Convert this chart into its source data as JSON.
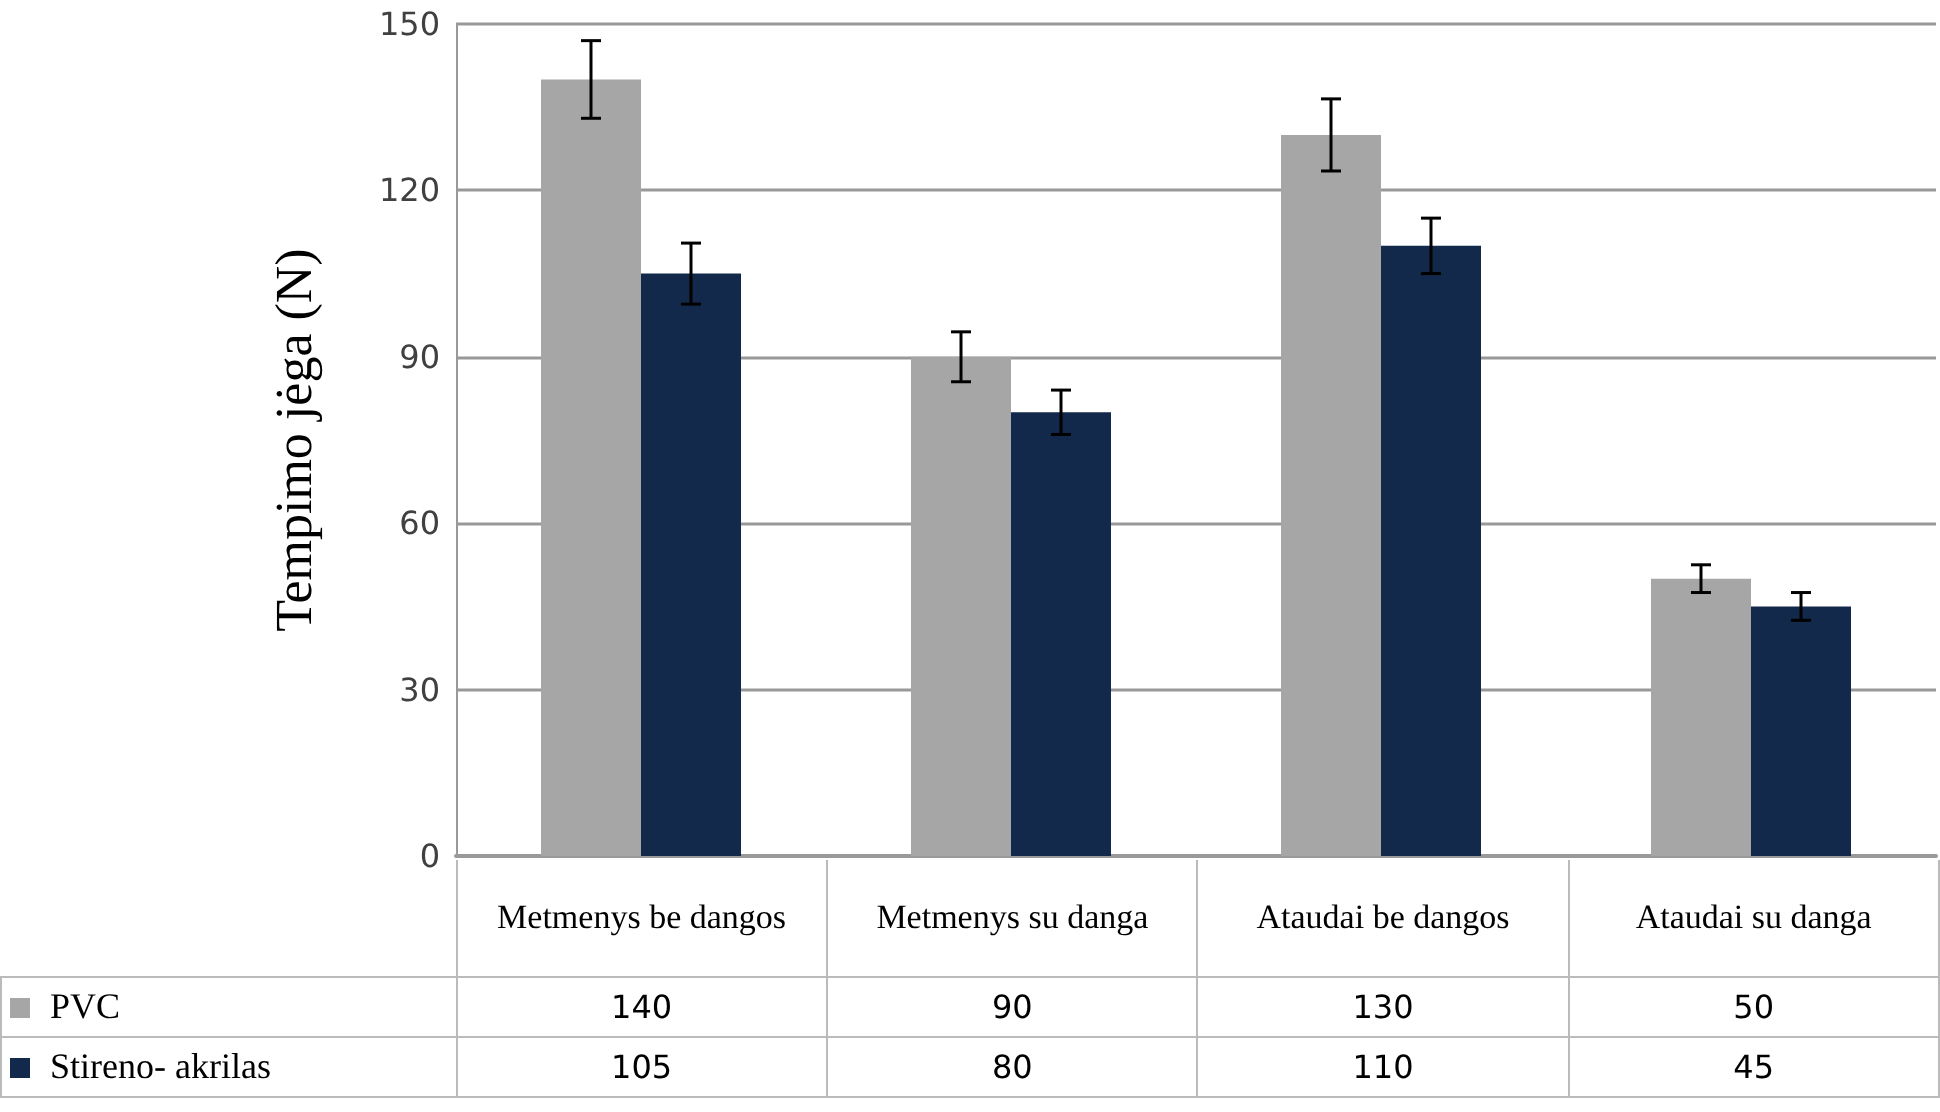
{
  "chart_data": {
    "type": "bar",
    "ylabel": "Tempimo jėga (N)",
    "categories": [
      "Metmenys be dangos",
      "Metmenys su danga",
      "Ataudai be dangos",
      "Ataudai su danga"
    ],
    "series": [
      {
        "name": "PVC",
        "color": "#a6a6a6",
        "values": [
          140,
          90,
          130,
          50
        ],
        "errors": [
          7,
          4.5,
          6.5,
          2.5
        ]
      },
      {
        "name": "Stireno- akrilas",
        "color": "#13294b",
        "values": [
          105,
          80,
          110,
          45
        ],
        "errors": [
          5.5,
          4,
          5,
          2.5
        ]
      }
    ],
    "ylim": [
      0,
      150
    ],
    "yticks": [
      0,
      30,
      60,
      90,
      120,
      150
    ],
    "grid": "y",
    "data_labels": true,
    "legend": "bottom"
  }
}
